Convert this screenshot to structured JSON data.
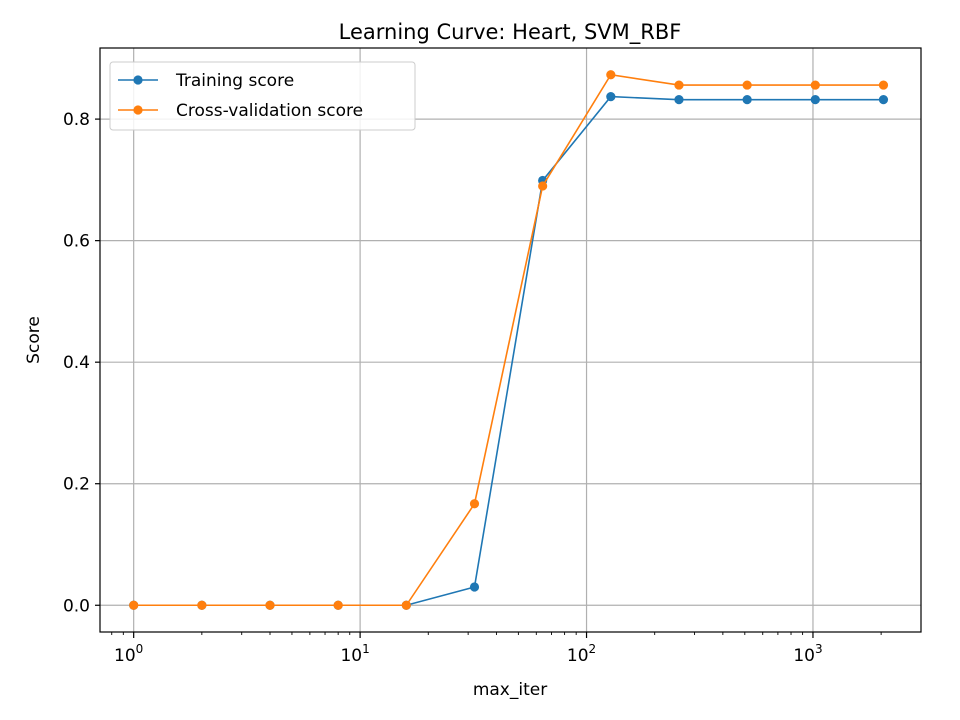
{
  "chart_data": {
    "type": "line",
    "title": "Learning Curve: Heart, SVM_RBF",
    "xlabel": "max_iter",
    "ylabel": "Score",
    "x_scale": "log",
    "x": [
      1,
      2,
      4,
      8,
      16,
      32,
      64,
      128,
      256,
      512,
      1024,
      2048
    ],
    "series": [
      {
        "name": "Training score",
        "color": "#1f77b4",
        "values": [
          0.0,
          0.0,
          0.0,
          0.0,
          0.0,
          0.03,
          0.699,
          0.837,
          0.832,
          0.832,
          0.832,
          0.832
        ]
      },
      {
        "name": "Cross-validation score",
        "color": "#ff7f0e",
        "values": [
          0.0,
          0.0,
          0.0,
          0.0,
          0.0,
          0.167,
          0.69,
          0.873,
          0.856,
          0.856,
          0.856,
          0.856
        ]
      }
    ],
    "xlim": [
      0.71,
      3000
    ],
    "ylim": [
      -0.044,
      0.917
    ],
    "x_ticks": [
      {
        "value": 1,
        "base": "10",
        "exp": "0"
      },
      {
        "value": 10,
        "base": "10",
        "exp": "1"
      },
      {
        "value": 100,
        "base": "10",
        "exp": "2"
      },
      {
        "value": 1000,
        "base": "10",
        "exp": "3"
      }
    ],
    "y_ticks": [
      {
        "value": 0.0,
        "label": "0.0"
      },
      {
        "value": 0.2,
        "label": "0.2"
      },
      {
        "value": 0.4,
        "label": "0.4"
      },
      {
        "value": 0.6,
        "label": "0.6"
      },
      {
        "value": 0.8,
        "label": "0.8"
      }
    ],
    "grid": true,
    "legend_position": "top-left"
  }
}
